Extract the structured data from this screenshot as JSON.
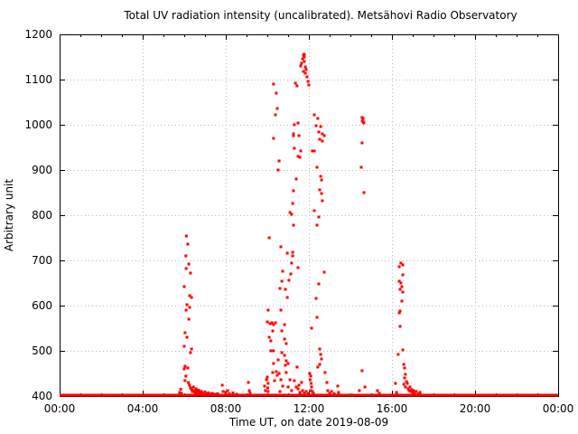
{
  "figure": {
    "background": "#ffffff"
  },
  "chart_data": {
    "type": "scatter",
    "title": "Total UV radiation intensity (uncalibrated). Metsähovi Radio Observatory",
    "xlabel": "Time UT, on date 2019-08-09",
    "ylabel": "Arbitrary unit",
    "xlim_hours": [
      0,
      24
    ],
    "ylim": [
      400,
      1200
    ],
    "x_tick_hours": [
      0,
      4,
      8,
      12,
      16,
      20,
      24
    ],
    "x_tick_labels": [
      "00:00",
      "04:00",
      "08:00",
      "12:00",
      "16:00",
      "20:00",
      "00:00"
    ],
    "x_minor_tick_interval_hours": 1,
    "y_ticks": [
      400,
      500,
      600,
      700,
      800,
      900,
      1000,
      1100,
      1200
    ],
    "grid": "dotted",
    "legend": "none",
    "point_color": "#ff0000",
    "axis_color": "#000000",
    "grid_color": "#b8b8b8",
    "baseline": {
      "value": 402,
      "from_hour": 0,
      "to_hour": 24
    },
    "points": [
      [
        5.78,
        408
      ],
      [
        5.83,
        415
      ],
      [
        5.87,
        406
      ],
      [
        6.0,
        642
      ],
      [
        6.0,
        510
      ],
      [
        6.0,
        460
      ],
      [
        6.04,
        540
      ],
      [
        6.04,
        466
      ],
      [
        6.04,
        434
      ],
      [
        6.08,
        710
      ],
      [
        6.08,
        444
      ],
      [
        6.09,
        682
      ],
      [
        6.09,
        590
      ],
      [
        6.1,
        754
      ],
      [
        6.13,
        602
      ],
      [
        6.13,
        530
      ],
      [
        6.17,
        736
      ],
      [
        6.17,
        462
      ],
      [
        6.2,
        430
      ],
      [
        6.22,
        692
      ],
      [
        6.22,
        570
      ],
      [
        6.25,
        424
      ],
      [
        6.26,
        622
      ],
      [
        6.26,
        596
      ],
      [
        6.3,
        672
      ],
      [
        6.3,
        496
      ],
      [
        6.3,
        418
      ],
      [
        6.35,
        618
      ],
      [
        6.35,
        504
      ],
      [
        6.35,
        414
      ],
      [
        6.4,
        410
      ],
      [
        6.44,
        420
      ],
      [
        6.48,
        412
      ],
      [
        6.52,
        408
      ],
      [
        6.57,
        416
      ],
      [
        6.61,
        410
      ],
      [
        6.65,
        406
      ],
      [
        6.7,
        413
      ],
      [
        6.74,
        408
      ],
      [
        6.78,
        405
      ],
      [
        6.83,
        410
      ],
      [
        6.91,
        406
      ],
      [
        7.0,
        409
      ],
      [
        7.09,
        405
      ],
      [
        7.17,
        407
      ],
      [
        7.26,
        404
      ],
      [
        7.35,
        406
      ],
      [
        7.48,
        404
      ],
      [
        7.61,
        405
      ],
      [
        7.83,
        424
      ],
      [
        7.87,
        410
      ],
      [
        8.0,
        408
      ],
      [
        8.09,
        412
      ],
      [
        8.17,
        405
      ],
      [
        8.35,
        407
      ],
      [
        8.52,
        404
      ],
      [
        9.09,
        430
      ],
      [
        9.13,
        412
      ],
      [
        9.17,
        406
      ],
      [
        9.87,
        422
      ],
      [
        9.91,
        412
      ],
      [
        9.96,
        436
      ],
      [
        10.0,
        442
      ],
      [
        10.02,
        418
      ],
      [
        10.04,
        410
      ],
      [
        10.04,
        428
      ],
      [
        10.0,
        564
      ],
      [
        10.04,
        590
      ],
      [
        10.09,
        750
      ],
      [
        10.09,
        530
      ],
      [
        10.13,
        560
      ],
      [
        10.17,
        522
      ],
      [
        10.17,
        500
      ],
      [
        10.22,
        562
      ],
      [
        10.26,
        544
      ],
      [
        10.26,
        452
      ],
      [
        10.3,
        558
      ],
      [
        10.3,
        500
      ],
      [
        10.3,
        472
      ],
      [
        10.35,
        434
      ],
      [
        10.39,
        562
      ],
      [
        10.43,
        454
      ],
      [
        10.48,
        446
      ],
      [
        10.52,
        480
      ],
      [
        10.57,
        450
      ],
      [
        10.3,
        1090
      ],
      [
        10.43,
        1070
      ],
      [
        10.48,
        1036
      ],
      [
        10.39,
        1022
      ],
      [
        10.3,
        970
      ],
      [
        10.57,
        920
      ],
      [
        10.52,
        900
      ],
      [
        10.61,
        638
      ],
      [
        10.65,
        730
      ],
      [
        10.65,
        590
      ],
      [
        10.65,
        436
      ],
      [
        10.7,
        654
      ],
      [
        10.7,
        544
      ],
      [
        10.7,
        496
      ],
      [
        10.74,
        676
      ],
      [
        10.83,
        558
      ],
      [
        10.83,
        526
      ],
      [
        10.83,
        490
      ],
      [
        10.87,
        636
      ],
      [
        10.87,
        468
      ],
      [
        10.91,
        516
      ],
      [
        10.91,
        478
      ],
      [
        10.96,
        716
      ],
      [
        10.96,
        618
      ],
      [
        11.0,
        472
      ],
      [
        11.04,
        656
      ],
      [
        11.09,
        806
      ],
      [
        11.13,
        670
      ],
      [
        11.17,
        694
      ],
      [
        11.17,
        802
      ],
      [
        11.22,
        718
      ],
      [
        11.22,
        826
      ],
      [
        11.22,
        710
      ],
      [
        11.26,
        854
      ],
      [
        11.26,
        778
      ],
      [
        11.3,
        948
      ],
      [
        11.35,
        1092
      ],
      [
        11.39,
        880
      ],
      [
        11.43,
        1086
      ],
      [
        11.43,
        464
      ],
      [
        11.48,
        684
      ],
      [
        11.48,
        930
      ],
      [
        11.52,
        976
      ],
      [
        11.57,
        928
      ],
      [
        11.61,
        942
      ],
      [
        11.48,
        1004
      ],
      [
        11.26,
        980
      ],
      [
        11.26,
        976
      ],
      [
        11.3,
        1000
      ],
      [
        10.61,
        410
      ],
      [
        10.74,
        422
      ],
      [
        10.91,
        452
      ],
      [
        11.0,
        420
      ],
      [
        11.09,
        436
      ],
      [
        11.17,
        412
      ],
      [
        11.3,
        434
      ],
      [
        11.39,
        420
      ],
      [
        11.48,
        416
      ],
      [
        11.52,
        424
      ],
      [
        11.57,
        408
      ],
      [
        11.65,
        430
      ],
      [
        11.7,
        412
      ],
      [
        11.78,
        406
      ],
      [
        11.87,
        410
      ],
      [
        11.96,
        405
      ],
      [
        11.7,
        1146
      ],
      [
        11.74,
        1154
      ],
      [
        11.74,
        1118
      ],
      [
        11.78,
        1156
      ],
      [
        11.78,
        1140
      ],
      [
        11.61,
        1130
      ],
      [
        11.83,
        1128
      ],
      [
        11.83,
        1114
      ],
      [
        11.87,
        1122
      ],
      [
        11.91,
        1106
      ],
      [
        11.96,
        1096
      ],
      [
        12.0,
        1088
      ],
      [
        11.65,
        1136
      ],
      [
        11.78,
        1150
      ],
      [
        12.26,
        1022
      ],
      [
        12.43,
        1014
      ],
      [
        12.35,
        998
      ],
      [
        12.57,
        996
      ],
      [
        12.48,
        984
      ],
      [
        12.65,
        980
      ],
      [
        12.74,
        976
      ],
      [
        12.52,
        968
      ],
      [
        12.65,
        964
      ],
      [
        12.26,
        942
      ],
      [
        12.17,
        942
      ],
      [
        12.39,
        906
      ],
      [
        12.57,
        886
      ],
      [
        12.61,
        878
      ],
      [
        12.52,
        856
      ],
      [
        12.61,
        848
      ],
      [
        12.65,
        832
      ],
      [
        12.26,
        810
      ],
      [
        12.48,
        796
      ],
      [
        12.39,
        778
      ],
      [
        12.74,
        674
      ],
      [
        12.48,
        648
      ],
      [
        12.35,
        616
      ],
      [
        12.39,
        574
      ],
      [
        12.13,
        550
      ],
      [
        12.52,
        504
      ],
      [
        12.57,
        492
      ],
      [
        12.61,
        482
      ],
      [
        12.52,
        470
      ],
      [
        12.43,
        464
      ],
      [
        12.04,
        450
      ],
      [
        12.09,
        444
      ],
      [
        12.06,
        436
      ],
      [
        12.11,
        428
      ],
      [
        12.13,
        420
      ],
      [
        12.09,
        412
      ],
      [
        12.17,
        410
      ],
      [
        12.22,
        406
      ],
      [
        12.78,
        452
      ],
      [
        12.87,
        430
      ],
      [
        12.91,
        412
      ],
      [
        13.0,
        406
      ],
      [
        13.09,
        410
      ],
      [
        13.22,
        405
      ],
      [
        13.39,
        422
      ],
      [
        13.43,
        408
      ],
      [
        14.43,
        412
      ],
      [
        14.52,
        906
      ],
      [
        14.56,
        1016
      ],
      [
        14.56,
        960
      ],
      [
        14.57,
        1008
      ],
      [
        14.61,
        1014
      ],
      [
        14.63,
        1006
      ],
      [
        14.65,
        1004
      ],
      [
        14.65,
        850
      ],
      [
        14.56,
        456
      ],
      [
        14.7,
        420
      ],
      [
        15.3,
        412
      ],
      [
        15.39,
        406
      ],
      [
        16.17,
        428
      ],
      [
        16.22,
        408
      ],
      [
        16.3,
        492
      ],
      [
        16.35,
        686
      ],
      [
        16.35,
        654
      ],
      [
        16.35,
        584
      ],
      [
        16.39,
        636
      ],
      [
        16.39,
        588
      ],
      [
        16.39,
        554
      ],
      [
        16.43,
        694
      ],
      [
        16.43,
        650
      ],
      [
        16.48,
        642
      ],
      [
        16.48,
        610
      ],
      [
        16.52,
        690
      ],
      [
        16.52,
        668
      ],
      [
        16.52,
        630
      ],
      [
        16.52,
        502
      ],
      [
        16.57,
        470
      ],
      [
        16.57,
        426
      ],
      [
        16.61,
        462
      ],
      [
        16.61,
        440
      ],
      [
        16.65,
        448
      ],
      [
        16.65,
        420
      ],
      [
        16.7,
        432
      ],
      [
        16.74,
        428
      ],
      [
        16.78,
        416
      ],
      [
        16.83,
        412
      ],
      [
        16.87,
        420
      ],
      [
        16.91,
        410
      ],
      [
        16.96,
        414
      ],
      [
        17.0,
        408
      ],
      [
        17.04,
        412
      ],
      [
        17.09,
        406
      ],
      [
        17.17,
        410
      ],
      [
        17.26,
        405
      ],
      [
        17.35,
        408
      ]
    ]
  }
}
